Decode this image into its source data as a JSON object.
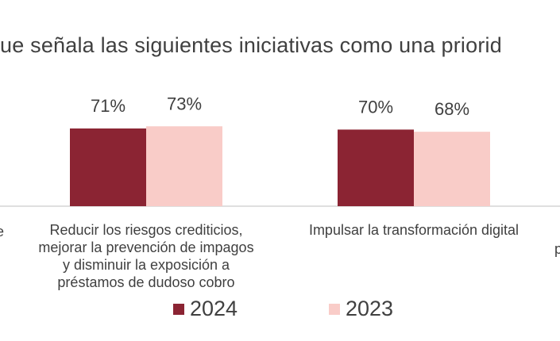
{
  "title": "ue señala las siguientes iniciativas  como una priorid",
  "colors": {
    "series_2024": "#8b2433",
    "series_2023": "#f9ccc8",
    "axis": "#bfbfbf"
  },
  "left_edge_fragment": "e",
  "right_edge_fragment": "p",
  "chart_data": {
    "type": "bar",
    "categories": [
      "Reducir los riesgos crediticios, mejorar la prevención de impagos y disminuir la exposición a préstamos de dudoso cobro",
      "Impulsar la transformación digital"
    ],
    "category_lines": [
      [
        "Reducir los riesgos crediticios,",
        "mejorar la prevención de impagos",
        "y disminuir la exposición a",
        "préstamos de dudoso cobro"
      ],
      [
        "Impulsar la transformación digital"
      ]
    ],
    "series": [
      {
        "name": "2024",
        "values": [
          71,
          70
        ],
        "labels": [
          "71%",
          "70%"
        ]
      },
      {
        "name": "2023",
        "values": [
          73,
          68
        ],
        "labels": [
          "73%",
          "68%"
        ]
      }
    ],
    "ylim": [
      0,
      100
    ],
    "legend": "bottom"
  }
}
